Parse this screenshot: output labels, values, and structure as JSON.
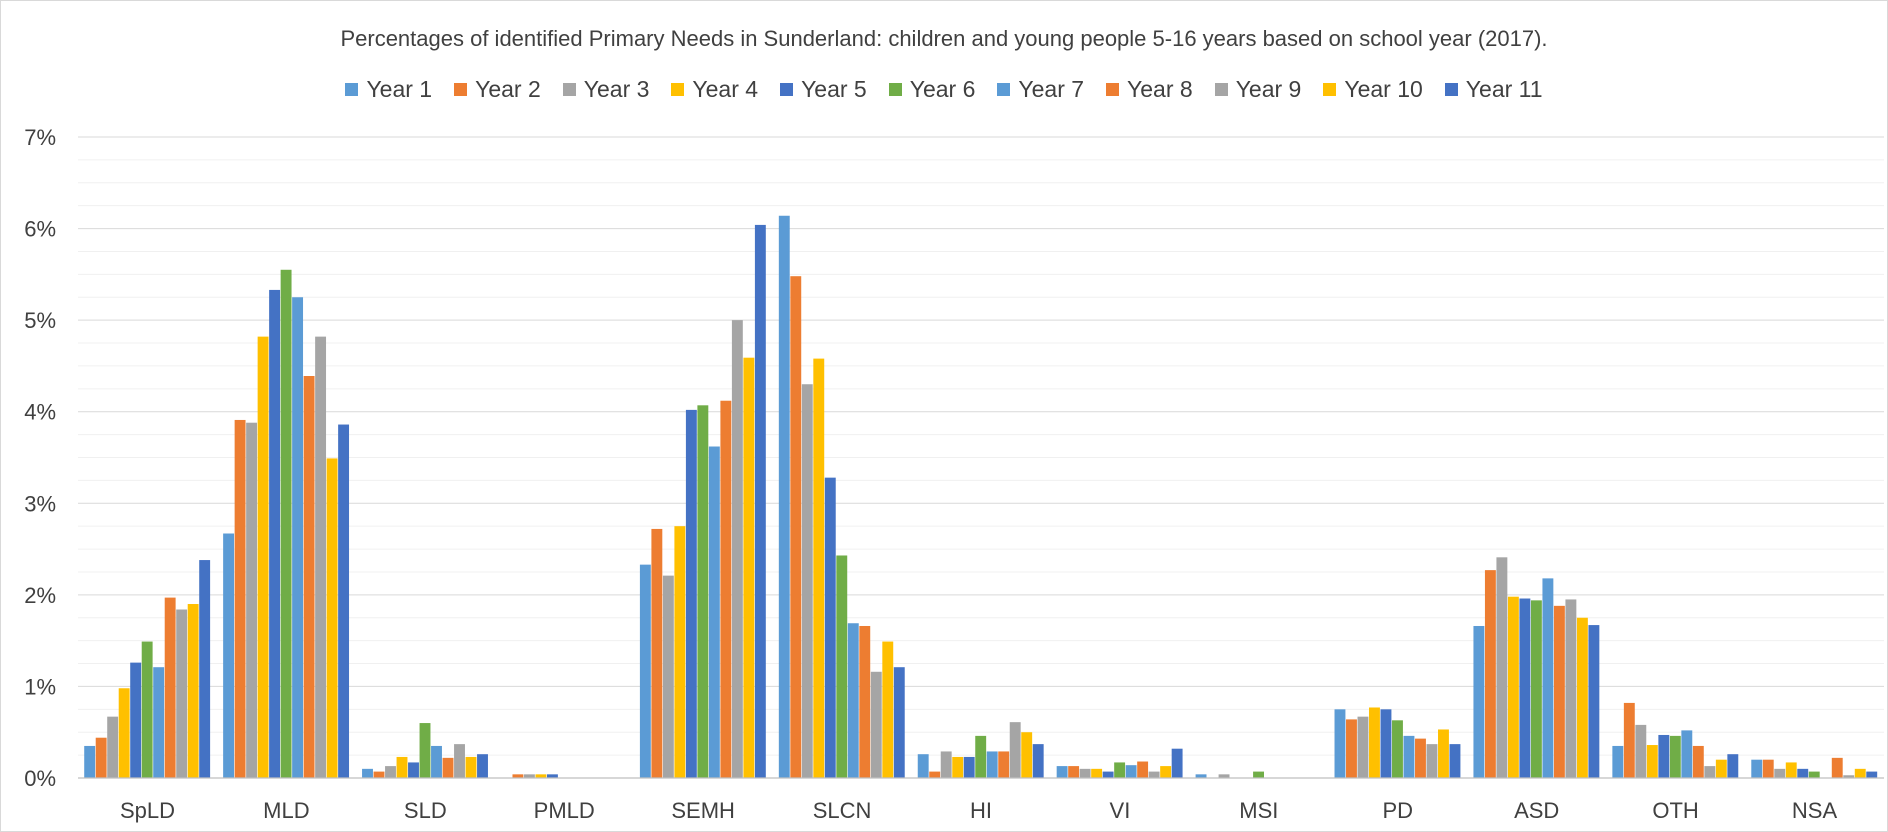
{
  "chart_data": {
    "type": "bar",
    "title": "Percentages of identified Primary Needs in Sunderland: children and young people 5-16 years based on school year (2017).",
    "xlabel": "",
    "ylabel": "",
    "ylim": [
      0,
      7
    ],
    "y_tick_labels": [
      "0%",
      "1%",
      "2%",
      "3%",
      "4%",
      "5%",
      "6%",
      "7%"
    ],
    "y_ticks": [
      0,
      1,
      2,
      3,
      4,
      5,
      6,
      7
    ],
    "minor_grid_step": 0.25,
    "grid": true,
    "legend_position": "top",
    "categories": [
      "SpLD",
      "MLD",
      "SLD",
      "PMLD",
      "SEMH",
      "SLCN",
      "HI",
      "VI",
      "MSI",
      "PD",
      "ASD",
      "OTH",
      "NSA"
    ],
    "series": [
      {
        "name": "Year 1",
        "color": "#5b9bd5",
        "values": [
          0.35,
          2.67,
          0.1,
          0.0,
          2.33,
          6.14,
          0.26,
          0.13,
          0.04,
          0.75,
          1.66,
          0.35,
          0.2
        ]
      },
      {
        "name": "Year 2",
        "color": "#ed7d31",
        "values": [
          0.44,
          3.91,
          0.07,
          0.04,
          2.72,
          5.48,
          0.07,
          0.13,
          0.0,
          0.64,
          2.27,
          0.82,
          0.2
        ]
      },
      {
        "name": "Year 3",
        "color": "#a5a5a5",
        "values": [
          0.67,
          3.88,
          0.13,
          0.04,
          2.21,
          4.3,
          0.29,
          0.1,
          0.04,
          0.67,
          2.41,
          0.58,
          0.1
        ]
      },
      {
        "name": "Year 4",
        "color": "#ffc000",
        "values": [
          0.98,
          4.82,
          0.23,
          0.04,
          2.75,
          4.58,
          0.23,
          0.1,
          0.0,
          0.77,
          1.98,
          0.36,
          0.17
        ]
      },
      {
        "name": "Year 5",
        "color": "#4472c4",
        "values": [
          1.26,
          5.33,
          0.17,
          0.04,
          4.02,
          3.28,
          0.23,
          0.07,
          0.0,
          0.75,
          1.96,
          0.47,
          0.1
        ]
      },
      {
        "name": "Year 6",
        "color": "#70ad47",
        "values": [
          1.49,
          5.55,
          0.6,
          0.0,
          4.07,
          2.43,
          0.46,
          0.17,
          0.07,
          0.63,
          1.94,
          0.46,
          0.07
        ]
      },
      {
        "name": "Year 7",
        "color": "#5b9bd5",
        "values": [
          1.21,
          5.25,
          0.35,
          0.0,
          3.62,
          1.69,
          0.29,
          0.14,
          0.0,
          0.46,
          2.18,
          0.52,
          0.0
        ]
      },
      {
        "name": "Year 8",
        "color": "#ed7d31",
        "values": [
          1.97,
          4.39,
          0.22,
          0.0,
          4.12,
          1.66,
          0.29,
          0.18,
          0.0,
          0.43,
          1.88,
          0.35,
          0.22
        ]
      },
      {
        "name": "Year 9",
        "color": "#a5a5a5",
        "values": [
          1.84,
          4.82,
          0.37,
          0.0,
          5.0,
          1.16,
          0.61,
          0.07,
          0.0,
          0.37,
          1.95,
          0.13,
          0.03
        ]
      },
      {
        "name": "Year 10",
        "color": "#ffc000",
        "values": [
          1.9,
          3.49,
          0.23,
          0.0,
          4.59,
          1.49,
          0.5,
          0.13,
          0.0,
          0.53,
          1.75,
          0.2,
          0.1
        ]
      },
      {
        "name": "Year 11",
        "color": "#4472c4",
        "values": [
          2.38,
          3.86,
          0.26,
          0.0,
          6.04,
          1.21,
          0.37,
          0.32,
          0.0,
          0.37,
          1.67,
          0.26,
          0.07
        ]
      }
    ]
  }
}
